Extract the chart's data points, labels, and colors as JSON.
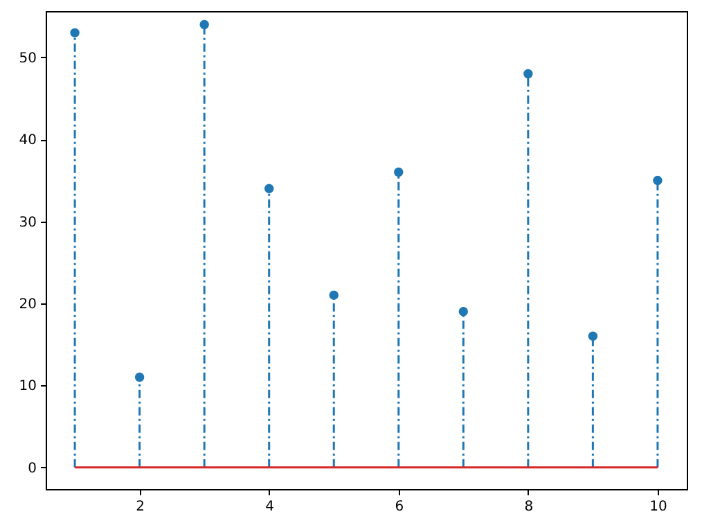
{
  "chart_data": {
    "type": "lollipop",
    "x": [
      1,
      2,
      3,
      4,
      5,
      6,
      7,
      8,
      9,
      10
    ],
    "values": [
      53,
      11,
      54,
      34,
      21,
      36,
      19,
      48,
      16,
      35
    ],
    "color": "#1f77b4",
    "marker": "circle",
    "line_style": "dashed",
    "xlim": [
      0.55,
      10.45
    ],
    "xticks": [
      2,
      4,
      6,
      8,
      10
    ],
    "ylim": [
      -2.65,
      55.65
    ],
    "yticks": [
      0,
      10,
      20,
      30,
      40,
      50
    ],
    "ref_lines": [
      {
        "axis": "y",
        "value": 0,
        "color": "#d62728",
        "line_style": "solid"
      }
    ],
    "grid": false
  }
}
